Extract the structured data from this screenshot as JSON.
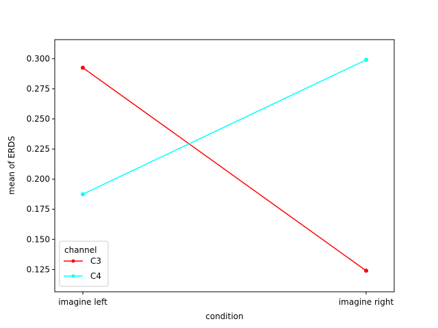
{
  "chart_data": {
    "type": "line",
    "title": "",
    "xlabel": "condition",
    "ylabel": "mean of ERDS",
    "categories": [
      "imagine left",
      "imagine right"
    ],
    "yticks": [
      "0.125",
      "0.150",
      "0.175",
      "0.200",
      "0.225",
      "0.250",
      "0.275",
      "0.300"
    ],
    "ylim": [
      0.1065,
      0.3158
    ],
    "grid": false,
    "legend": {
      "title": "channel",
      "placement": "lower-left"
    },
    "series": [
      {
        "name": "C3",
        "color": "#ff0000",
        "values": [
          0.2925,
          0.124
        ]
      },
      {
        "name": "C4",
        "color": "#00ffff",
        "values": [
          0.1875,
          0.299
        ]
      }
    ]
  }
}
